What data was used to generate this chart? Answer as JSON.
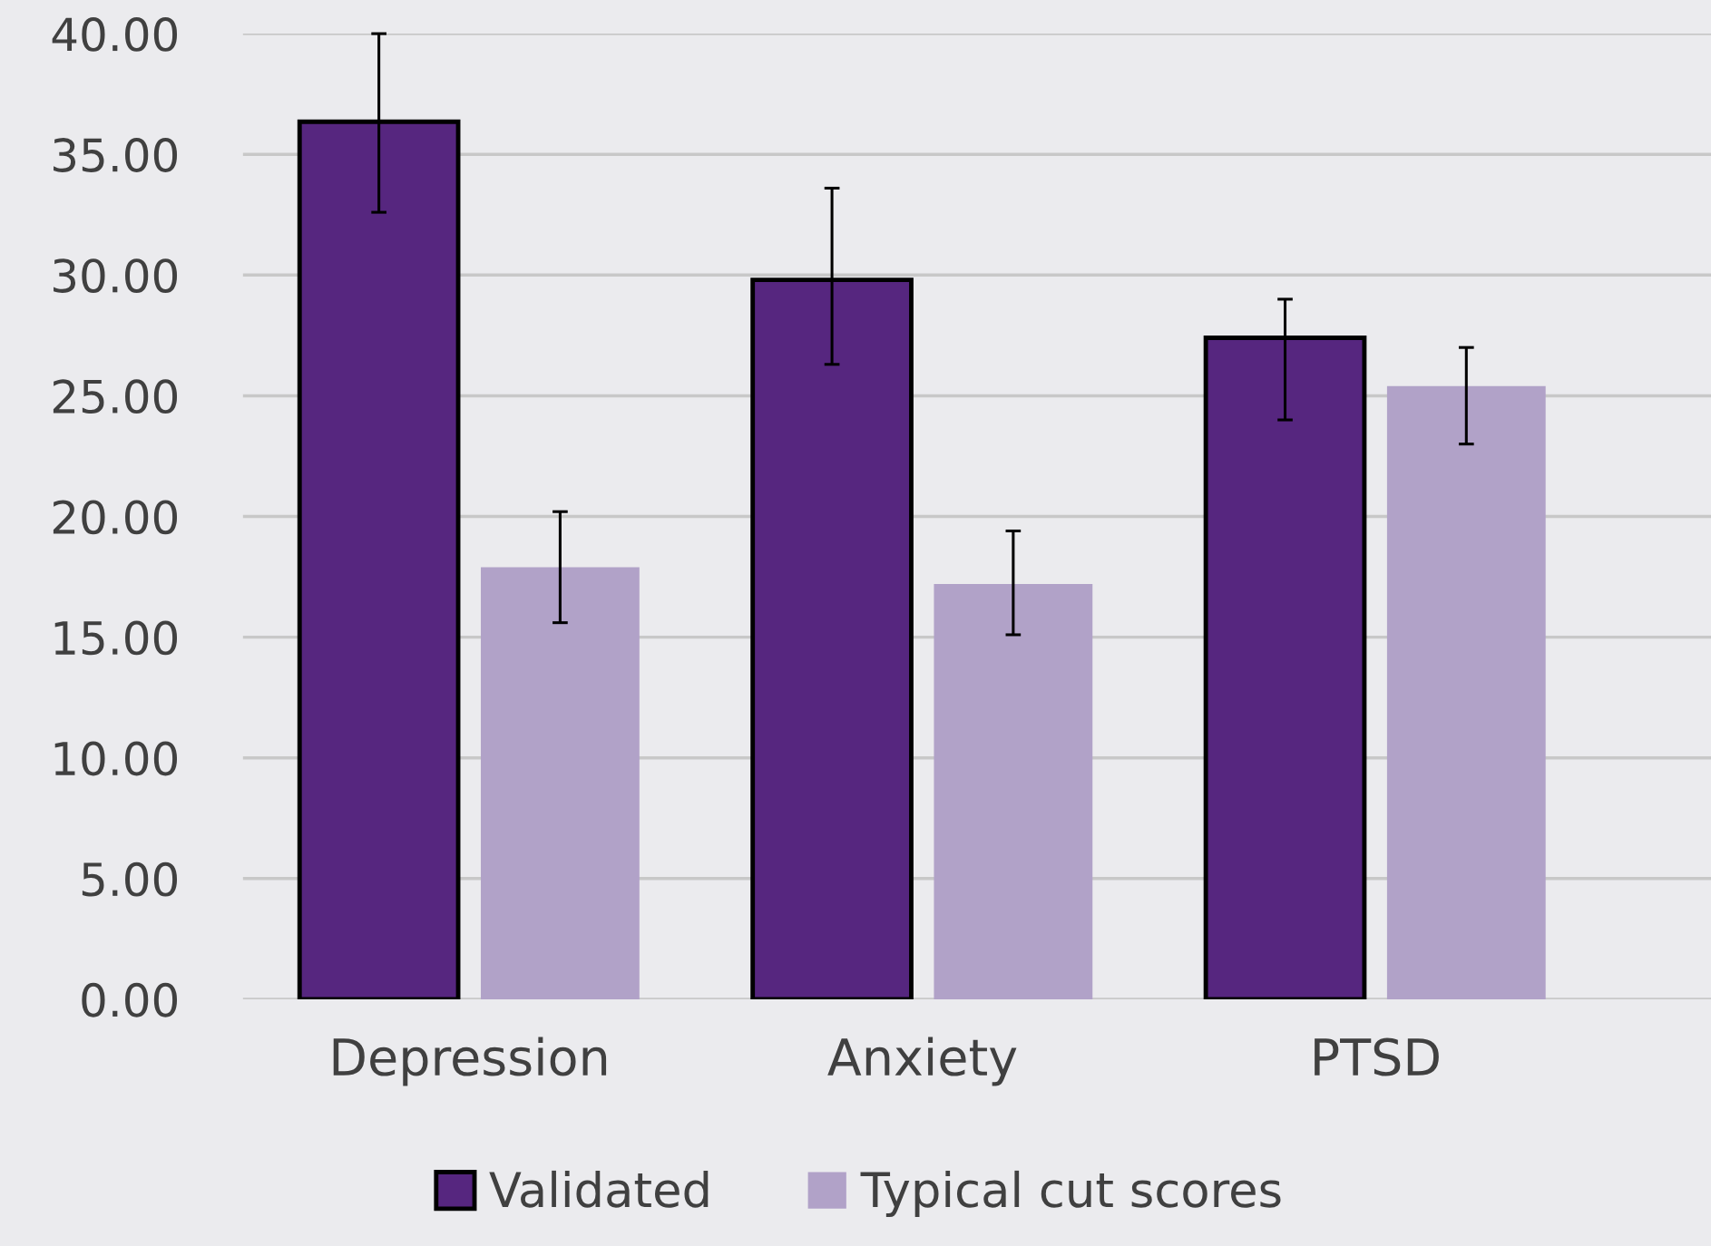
{
  "chart_data": {
    "type": "bar",
    "categories": [
      "Depression",
      "Anxiety",
      "PTSD"
    ],
    "series": [
      {
        "name": "Validated",
        "color": "#56267f",
        "values": [
          36.35,
          29.8,
          27.4
        ],
        "errors": [
          [
            32.6,
            40.0
          ],
          [
            26.3,
            33.6
          ],
          [
            24.0,
            29.0
          ]
        ]
      },
      {
        "name": "Typical cut scores",
        "color": "#b1a2c8",
        "values": [
          17.9,
          17.2,
          25.4
        ],
        "errors": [
          [
            15.6,
            20.2
          ],
          [
            15.1,
            19.4
          ],
          [
            23.0,
            27.0
          ]
        ]
      }
    ],
    "ylim": [
      0,
      40
    ],
    "yticks": [
      {
        "value": 0,
        "label": "0.00"
      },
      {
        "value": 5,
        "label": "5.00"
      },
      {
        "value": 10,
        "label": "10.00"
      },
      {
        "value": 15,
        "label": "15.00"
      },
      {
        "value": 20,
        "label": "20.00"
      },
      {
        "value": 25,
        "label": "25.00"
      },
      {
        "value": 30,
        "label": "30.00"
      },
      {
        "value": 35,
        "label": "35.00"
      },
      {
        "value": 40,
        "label": "40.00"
      }
    ],
    "grid": "y",
    "legend": "bottom"
  }
}
